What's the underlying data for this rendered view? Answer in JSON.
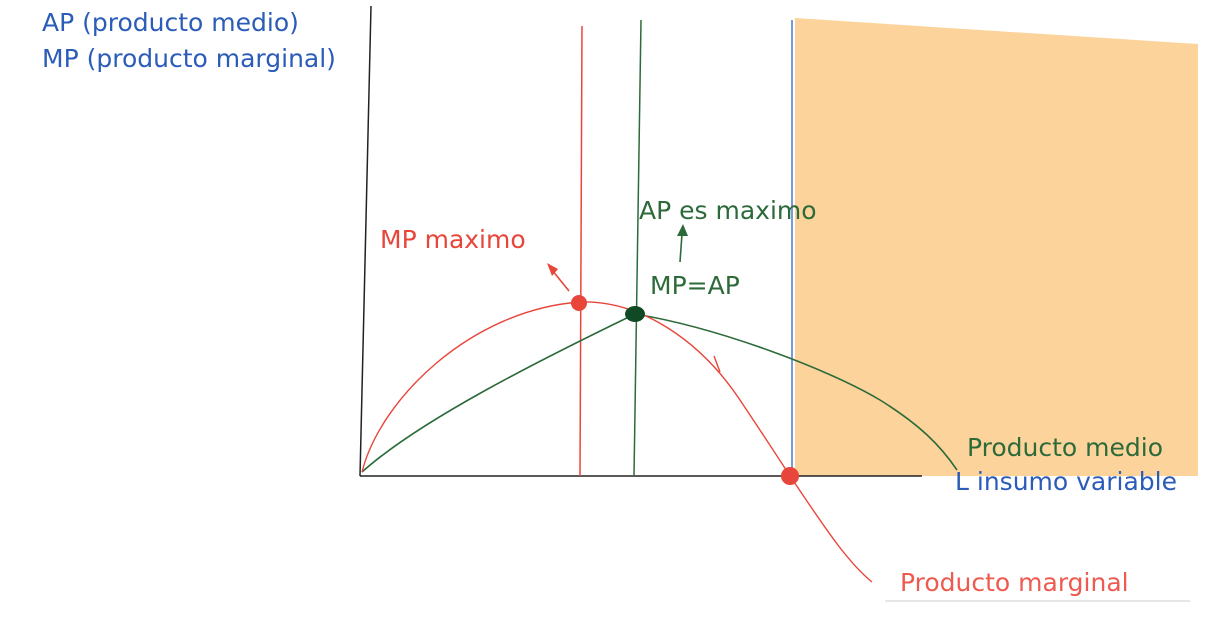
{
  "labels": {
    "y_axis_ap": "AP (producto medio)",
    "y_axis_mp": "MP (producto marginal)",
    "mp_max": "MP maximo",
    "ap_max": "AP es maximo",
    "mp_eq_ap": "MP=AP",
    "avg_curve": "Producto medio",
    "x_axis": "L insumo variable",
    "marg_curve": "Producto marginal"
  },
  "colors": {
    "axis_label": "#2a5cb8",
    "marginal": "#e8463a",
    "marginal_label": "#ee5a4f",
    "average": "#2d6a3a",
    "average_point": "#0f4a24",
    "shaded_region": "#fcd49b",
    "boundary_line": "#4a78cc",
    "axis": "#222222"
  },
  "diagram": {
    "shaded_region": "stage III: marginal product below zero"
  }
}
